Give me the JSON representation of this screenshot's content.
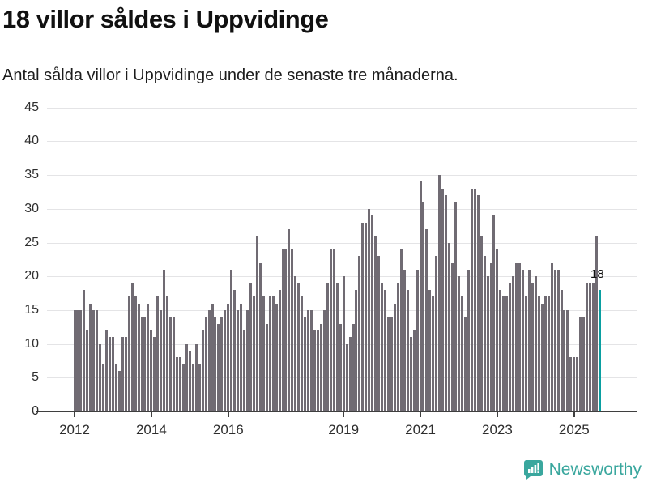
{
  "header": {
    "title": "18 villor såldes i Uppvidinge",
    "subtitle": "Antal sålda villor i Uppvidinge under de senaste tre månaderna."
  },
  "annotation": {
    "last_value_label": "18"
  },
  "footer": {
    "brand": "Newsworthy",
    "logo_icon": "bar-chart-speech-bubble-icon",
    "brand_color": "#3aa79e"
  },
  "chart_data": {
    "type": "bar",
    "title": "18 villor såldes i Uppvidinge",
    "subtitle": "Antal sålda villor i Uppvidinge under de senaste tre månaderna.",
    "xlabel": "",
    "ylabel": "",
    "ylim": [
      0,
      45
    ],
    "grid": true,
    "start_month": "2012-01",
    "end_month": "2025-09",
    "x_tick_labels": [
      "2012",
      "2014",
      "2016",
      "2019",
      "2021",
      "2023",
      "2025"
    ],
    "x_tick_years": [
      2012,
      2014,
      2016,
      2019,
      2021,
      2023,
      2025
    ],
    "y_tick_labels": [
      "0",
      "5",
      "10",
      "15",
      "20",
      "25",
      "30",
      "35",
      "40",
      "45"
    ],
    "y_ticks": [
      0,
      5,
      10,
      15,
      20,
      25,
      30,
      35,
      40,
      45
    ],
    "bar_color": "#706b73",
    "highlight_color": "#0a9fa1",
    "highlight_last_bar": true,
    "last_value": 18,
    "values": [
      15,
      15,
      15,
      18,
      12,
      16,
      15,
      15,
      10,
      7,
      12,
      11,
      11,
      7,
      6,
      11,
      11,
      17,
      19,
      17,
      16,
      14,
      14,
      16,
      12,
      11,
      17,
      15,
      21,
      17,
      14,
      14,
      8,
      8,
      7,
      10,
      9,
      7,
      10,
      7,
      12,
      14,
      15,
      16,
      14,
      13,
      14,
      15,
      16,
      21,
      18,
      15,
      16,
      12,
      15,
      19,
      17,
      26,
      22,
      17,
      13,
      17,
      17,
      16,
      18,
      24,
      24,
      27,
      24,
      20,
      19,
      17,
      14,
      15,
      15,
      12,
      12,
      13,
      15,
      19,
      24,
      24,
      19,
      13,
      20,
      10,
      11,
      13,
      18,
      23,
      28,
      28,
      30,
      29,
      26,
      23,
      19,
      18,
      14,
      14,
      16,
      19,
      24,
      21,
      18,
      11,
      12,
      21,
      34,
      31,
      27,
      18,
      17,
      23,
      35,
      33,
      32,
      25,
      22,
      31,
      20,
      17,
      14,
      21,
      33,
      33,
      32,
      26,
      23,
      20,
      22,
      29,
      24,
      18,
      17,
      17,
      19,
      20,
      22,
      22,
      21,
      17,
      21,
      19,
      20,
      17,
      16,
      17,
      17,
      22,
      21,
      21,
      18,
      15,
      15,
      8,
      8,
      8,
      14,
      14,
      19,
      19,
      19,
      26,
      18
    ]
  }
}
